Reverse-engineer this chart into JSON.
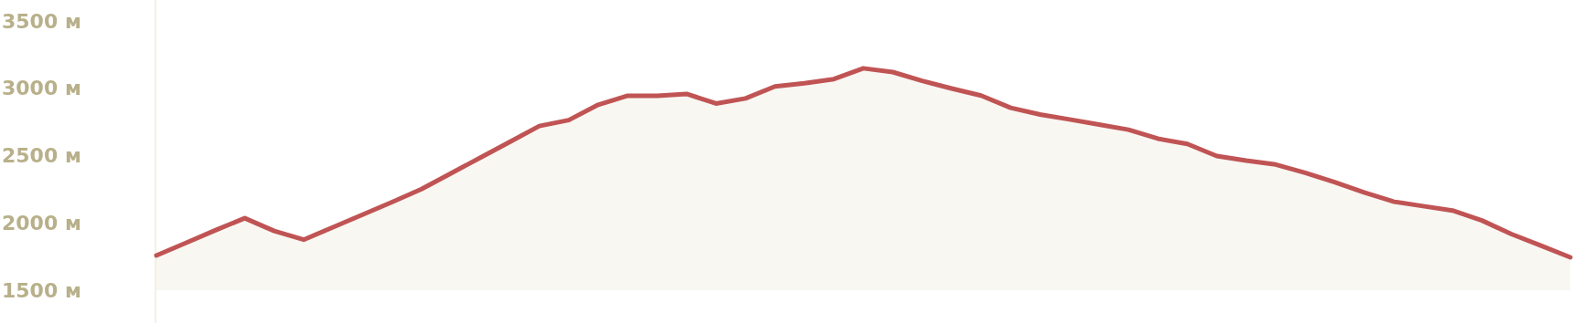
{
  "chart_data": {
    "type": "area",
    "categories": [
      null,
      null,
      null,
      null,
      null,
      null,
      null,
      null,
      null,
      null,
      null,
      null,
      null,
      null,
      null,
      null,
      null,
      null,
      null,
      null,
      null,
      null,
      null,
      null,
      null,
      null,
      null,
      null,
      null,
      null,
      null,
      null,
      null,
      null,
      null,
      null,
      null,
      null,
      null,
      null,
      null,
      null,
      null,
      null,
      null,
      null,
      null,
      null,
      null
    ],
    "series": [
      {
        "color": "#c05454",
        "values": [
          1758,
          1851,
          1945,
          2035,
          1940,
          1875,
          1968,
          2061,
          2154,
          2251,
          2368,
          2485,
          2602,
          2720,
          2764,
          2878,
          2945,
          2945,
          2959,
          2887,
          2925,
          3014,
          3038,
          3069,
          3149,
          3121,
          3056,
          2999,
          2946,
          2856,
          2806,
          2769,
          2731,
          2693,
          2626,
          2587,
          2497,
          2463,
          2434,
          2373,
          2303,
          2226,
          2158,
          2125,
          2092,
          2018,
          1917,
          1831,
          1744
        ]
      }
    ],
    "ylim": [
      1500,
      3650
    ],
    "yticks": [
      {
        "value": 1500,
        "label": "1500 м"
      },
      {
        "value": 2000,
        "label": "2000 м"
      },
      {
        "value": 2500,
        "label": "2500 м"
      },
      {
        "value": 3000,
        "label": "3000 м"
      },
      {
        "value": 3500,
        "label": "3500 м"
      }
    ],
    "tick_labels": "y",
    "grid": false
  }
}
